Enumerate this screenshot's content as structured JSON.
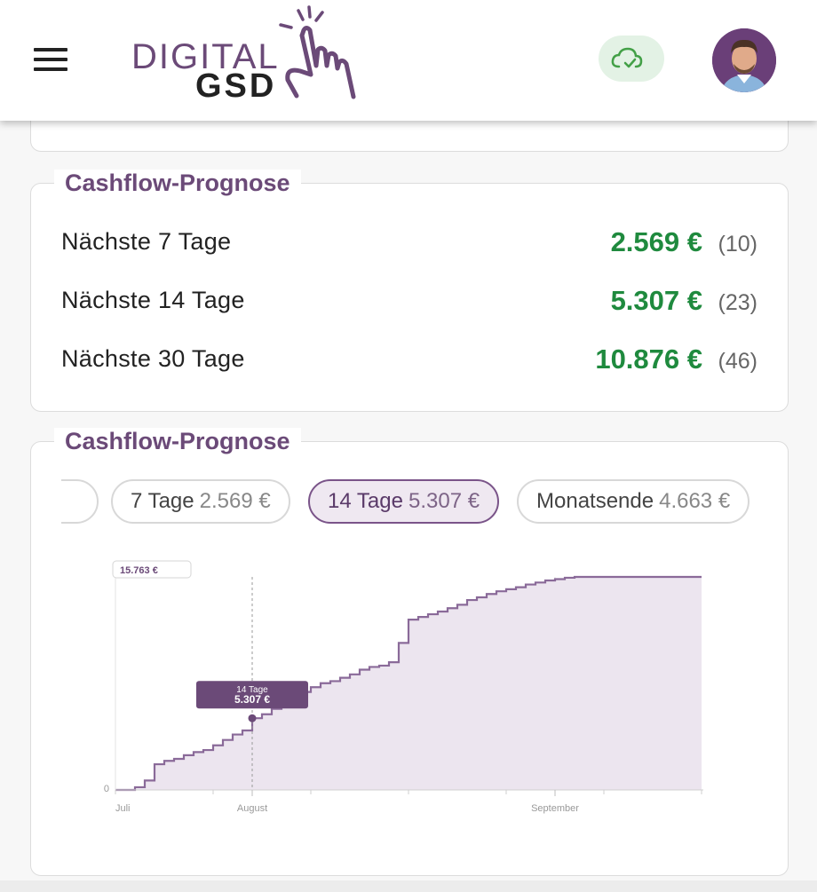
{
  "header": {
    "logo_line1": "DIGITAL",
    "logo_line2": "GSD",
    "menu_icon": "hamburger-menu-icon",
    "sync_icon": "cloud-check-icon",
    "sync_color": "#4caf50"
  },
  "summary": {
    "title": "Cashflow-Prognose",
    "rows": [
      {
        "label": "Nächste 7 Tage",
        "amount": "2.569 €",
        "count": "(10)"
      },
      {
        "label": "Nächste 14 Tage",
        "amount": "5.307 €",
        "count": "(23)"
      },
      {
        "label": "Nächste 30 Tage",
        "amount": "10.876 €",
        "count": "(46)"
      }
    ]
  },
  "forecast": {
    "title": "Cashflow-Prognose",
    "chips": [
      {
        "label": "7 Tage",
        "value": "2.569 €",
        "active": false
      },
      {
        "label": "14 Tage",
        "value": "5.307 €",
        "active": true
      },
      {
        "label": "Monatsende",
        "value": "4.663 €",
        "active": false
      }
    ]
  },
  "chart_data": {
    "type": "area",
    "title": "",
    "xlabel": "",
    "ylabel": "",
    "ylim": [
      0,
      15763
    ],
    "y_max_label": "15.763 €",
    "y_min_label": "0",
    "x_tick_labels": [
      "Juli",
      "August",
      "September"
    ],
    "grid": true,
    "annotation": {
      "label": "14 Tage",
      "value_label": "5.307 €",
      "day": 14,
      "value": 5307
    },
    "series": [
      {
        "x_days": [
          0,
          2,
          3,
          4,
          5,
          6,
          7,
          8,
          9,
          10,
          11,
          12,
          13,
          14,
          15,
          16,
          17,
          18,
          19,
          20,
          21,
          22,
          23,
          24,
          25,
          26,
          27,
          28,
          29,
          30,
          31,
          32,
          33,
          34,
          35,
          36,
          37,
          38,
          39,
          40,
          41,
          42,
          43,
          44,
          45,
          46,
          47,
          48,
          49,
          50,
          51,
          52,
          53,
          54,
          55,
          56,
          57,
          58,
          59,
          60
        ],
        "values": [
          0,
          200,
          700,
          1900,
          2150,
          2300,
          2569,
          2800,
          2950,
          3300,
          3700,
          4100,
          4400,
          5307,
          5600,
          6000,
          6400,
          6900,
          7250,
          7600,
          7900,
          8050,
          8300,
          8550,
          8900,
          9100,
          9200,
          9450,
          10876,
          12600,
          12800,
          13000,
          13200,
          13450,
          13700,
          14050,
          14250,
          14500,
          14700,
          14850,
          15000,
          15200,
          15350,
          15500,
          15600,
          15700,
          15763,
          15763,
          15763,
          15763,
          15763,
          15763,
          15763,
          15763,
          15763,
          15763,
          15763,
          15763,
          15763,
          15763
        ],
        "color": "#8a6a99"
      }
    ]
  },
  "colors": {
    "brand_purple": "#6b4a78",
    "positive_green": "#1f8a3e",
    "chart_fill": "#ece5ef"
  }
}
